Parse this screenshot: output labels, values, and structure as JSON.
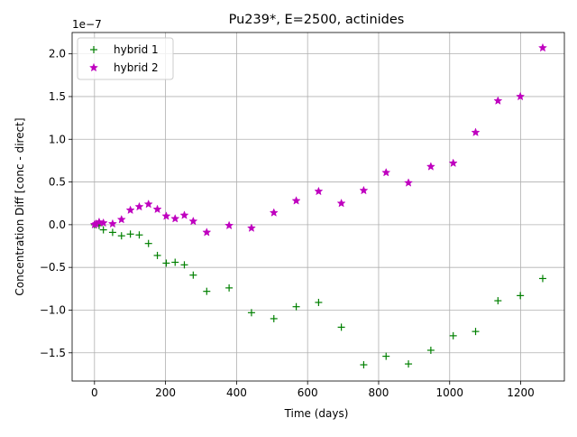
{
  "chart_data": {
    "type": "scatter",
    "title": "Pu239*, E=2500, actinides",
    "xlabel": "Time (days)",
    "ylabel": "Concentration Diff [conc - direct]",
    "y_offset_label": "1e−7",
    "xlim": [
      -63,
      1323
    ],
    "ylim": [
      -1.83,
      2.25
    ],
    "y_scale": "1e-7",
    "xticks": [
      0,
      200,
      400,
      600,
      800,
      1000,
      1200
    ],
    "yticks": [
      -1.5,
      -1.0,
      -0.5,
      0.0,
      0.5,
      1.0,
      1.5,
      2.0
    ],
    "xtick_labels": [
      "0",
      "200",
      "400",
      "600",
      "800",
      "1000",
      "1200"
    ],
    "ytick_labels": [
      "−1.5",
      "−1.0",
      "−0.5",
      "0.0",
      "0.5",
      "1.0",
      "1.5",
      "2.0"
    ],
    "grid": true,
    "legend": "top-left",
    "series": [
      {
        "name": "hybrid 1",
        "marker": "plus",
        "color": "#008000",
        "x": [
          0,
          5,
          13,
          25,
          51,
          76,
          101,
          126,
          152,
          177,
          202,
          227,
          253,
          278,
          316,
          379,
          442,
          505,
          568,
          631,
          695,
          758,
          821,
          884,
          947,
          1010,
          1073,
          1136,
          1199,
          1262
        ],
        "y": [
          0.0,
          0.0,
          -0.01,
          -0.06,
          -0.09,
          -0.13,
          -0.11,
          -0.12,
          -0.22,
          -0.36,
          -0.45,
          -0.44,
          -0.47,
          -0.59,
          -0.78,
          -0.74,
          -1.03,
          -1.1,
          -0.96,
          -0.91,
          -1.2,
          -1.64,
          -1.54,
          -1.63,
          -1.47,
          -1.3,
          -1.25,
          -0.89,
          -0.83,
          -0.63
        ]
      },
      {
        "name": "hybrid 2",
        "marker": "star",
        "color": "#bf00bf",
        "x": [
          0,
          5,
          13,
          25,
          51,
          76,
          101,
          126,
          152,
          177,
          202,
          227,
          253,
          278,
          316,
          379,
          442,
          505,
          568,
          631,
          695,
          758,
          821,
          884,
          947,
          1010,
          1073,
          1136,
          1199,
          1262
        ],
        "y": [
          0.0,
          0.01,
          0.03,
          0.02,
          0.01,
          0.06,
          0.17,
          0.21,
          0.24,
          0.18,
          0.1,
          0.07,
          0.11,
          0.04,
          -0.09,
          -0.01,
          -0.04,
          0.14,
          0.28,
          0.39,
          0.25,
          0.4,
          0.61,
          0.49,
          0.68,
          0.72,
          1.08,
          1.45,
          1.5,
          2.07
        ]
      }
    ]
  }
}
